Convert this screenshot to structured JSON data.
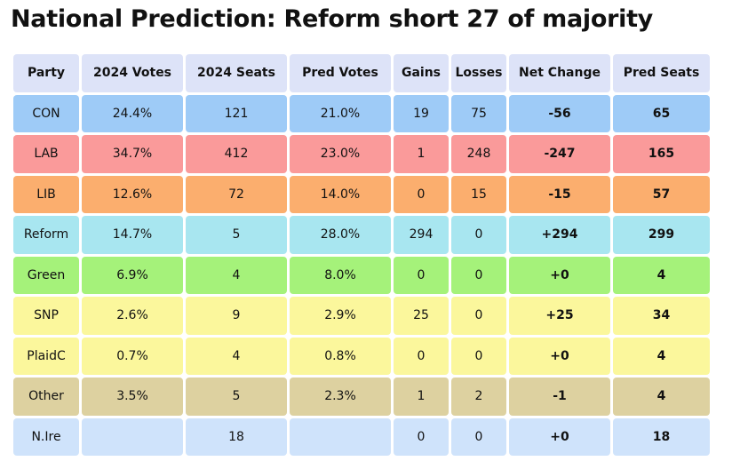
{
  "title": "National Prediction: Reform short 27 of majority",
  "table": {
    "headers": [
      "Party",
      "2024 Votes",
      "2024 Seats",
      "Pred Votes",
      "Gains",
      "Losses",
      "Net Change",
      "Pred Seats"
    ],
    "rows": [
      {
        "party": "CON",
        "color": "#9ecbf7",
        "cells": [
          "CON",
          "24.4%",
          "121",
          "21.0%",
          "19",
          "75",
          "-56",
          "65"
        ]
      },
      {
        "party": "LAB",
        "color": "#fa9a9a",
        "cells": [
          "LAB",
          "34.7%",
          "412",
          "23.0%",
          "1",
          "248",
          "-247",
          "165"
        ]
      },
      {
        "party": "LIB",
        "color": "#fbae6e",
        "cells": [
          "LIB",
          "12.6%",
          "72",
          "14.0%",
          "0",
          "15",
          "-15",
          "57"
        ]
      },
      {
        "party": "Reform",
        "color": "#a8e6f0",
        "cells": [
          "Reform",
          "14.7%",
          "5",
          "28.0%",
          "294",
          "0",
          "+294",
          "299"
        ]
      },
      {
        "party": "Green",
        "color": "#a5f27a",
        "cells": [
          "Green",
          "6.9%",
          "4",
          "8.0%",
          "0",
          "0",
          "+0",
          "4"
        ]
      },
      {
        "party": "SNP",
        "color": "#fbf79c",
        "cells": [
          "SNP",
          "2.6%",
          "9",
          "2.9%",
          "25",
          "0",
          "+25",
          "34"
        ]
      },
      {
        "party": "PlaidC",
        "color": "#fbf79c",
        "cells": [
          "PlaidC",
          "0.7%",
          "4",
          "0.8%",
          "0",
          "0",
          "+0",
          "4"
        ]
      },
      {
        "party": "Other",
        "color": "#ddd1a0",
        "cells": [
          "Other",
          "3.5%",
          "5",
          "2.3%",
          "1",
          "2",
          "-1",
          "4"
        ]
      },
      {
        "party": "N.Ire",
        "color": "#cfe3fb",
        "cells": [
          "N.Ire",
          "",
          "18",
          "",
          "0",
          "0",
          "+0",
          "18"
        ]
      }
    ]
  }
}
